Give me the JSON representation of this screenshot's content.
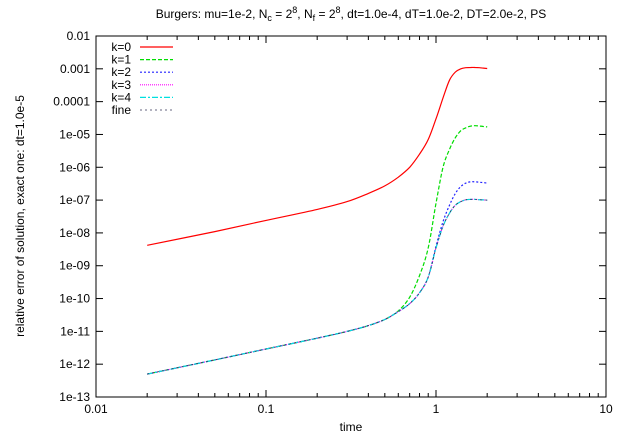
{
  "chart_data": {
    "type": "line",
    "title_parts": [
      "Burgers: mu=1e-2, N",
      "c",
      " = 2",
      "8",
      ", N",
      "f",
      " = 2",
      "8",
      ", dt=1.0e-4, dT=1.0e-2, DT=2.0e-2, PS"
    ],
    "xlabel": "time",
    "ylabel": "relative error of solution, exact one: dt=1.0e-5",
    "xscale": "log",
    "yscale": "log",
    "xlim": [
      0.01,
      10
    ],
    "ylim": [
      1e-13,
      0.01
    ],
    "xticks": [
      "0.01",
      "0.1",
      "1",
      "10"
    ],
    "yticks": [
      "0.01",
      "0.001",
      "0.0001",
      "1e-05",
      "1e-06",
      "1e-07",
      "1e-08",
      "1e-09",
      "1e-10",
      "1e-11",
      "1e-12",
      "1e-13"
    ],
    "grid": false,
    "legend_position": "top-left",
    "x": [
      0.02,
      0.05,
      0.1,
      0.2,
      0.3,
      0.4,
      0.5,
      0.6,
      0.7,
      0.8,
      0.9,
      1.0,
      1.1,
      1.2,
      1.3,
      1.4,
      1.5,
      1.6,
      1.7,
      1.8,
      1.9,
      2.0
    ],
    "series": [
      {
        "name": "k=0",
        "color": "#ff0000",
        "dash": "",
        "values": [
          4.2e-09,
          1.1e-08,
          2.4e-08,
          5.2e-08,
          9e-08,
          1.6e-07,
          2.7e-07,
          5e-07,
          1e-06,
          2.5e-06,
          7e-06,
          3e-05,
          0.00013,
          0.00045,
          0.0008,
          0.001,
          0.00108,
          0.0011,
          0.0011,
          0.00108,
          0.00105,
          0.00102
        ]
      },
      {
        "name": "k=1",
        "color": "#00dd00",
        "dash": "4,2",
        "values": [
          5e-13,
          1.35e-12,
          2.9e-12,
          6.2e-12,
          1e-11,
          1.5e-11,
          2.3e-11,
          4.2e-11,
          1.1e-10,
          5e-10,
          3.5e-09,
          8e-08,
          1e-06,
          3.5e-06,
          8e-06,
          1.3e-05,
          1.6e-05,
          1.8e-05,
          1.85e-05,
          1.8e-05,
          1.75e-05,
          1.7e-05
        ]
      },
      {
        "name": "k=2",
        "color": "#2222ff",
        "dash": "2,2",
        "values": [
          5e-13,
          1.35e-12,
          2.9e-12,
          6.2e-12,
          1e-11,
          1.5e-11,
          2.3e-11,
          4e-11,
          7e-11,
          1.5e-10,
          4.5e-10,
          4e-09,
          2.2e-08,
          7e-08,
          1.6e-07,
          2.6e-07,
          3.3e-07,
          3.6e-07,
          3.6e-07,
          3.5e-07,
          3.4e-07,
          3.3e-07
        ]
      },
      {
        "name": "k=3",
        "color": "#ff00ff",
        "dash": "1,1",
        "values": [
          5e-13,
          1.35e-12,
          2.9e-12,
          6.2e-12,
          1e-11,
          1.5e-11,
          2.3e-11,
          4e-11,
          7e-11,
          1.5e-10,
          4.5e-10,
          3.5e-09,
          1.6e-08,
          4e-08,
          7e-08,
          9e-08,
          1.02e-07,
          1.05e-07,
          1.05e-07,
          1.03e-07,
          1.01e-07,
          1e-07
        ]
      },
      {
        "name": "k=4",
        "color": "#00e0e0",
        "dash": "6,2,2,2",
        "values": [
          5e-13,
          1.35e-12,
          2.9e-12,
          6.2e-12,
          1e-11,
          1.5e-11,
          2.3e-11,
          4e-11,
          7e-11,
          1.5e-10,
          4.5e-10,
          3.5e-09,
          1.6e-08,
          4e-08,
          7e-08,
          9e-08,
          1.02e-07,
          1.05e-07,
          1.05e-07,
          1.03e-07,
          1.01e-07,
          1e-07
        ]
      },
      {
        "name": "fine",
        "color": "#333355",
        "dash": "2,3",
        "values": [
          5e-13,
          1.35e-12,
          2.9e-12,
          6.2e-12,
          1e-11,
          1.5e-11,
          2.3e-11,
          4e-11,
          7e-11,
          1.5e-10,
          4.5e-10,
          3.5e-09,
          1.6e-08,
          4e-08,
          7e-08,
          9e-08,
          1.02e-07,
          1.05e-07,
          1.05e-07,
          1.03e-07,
          1.01e-07,
          1e-07
        ]
      }
    ]
  }
}
